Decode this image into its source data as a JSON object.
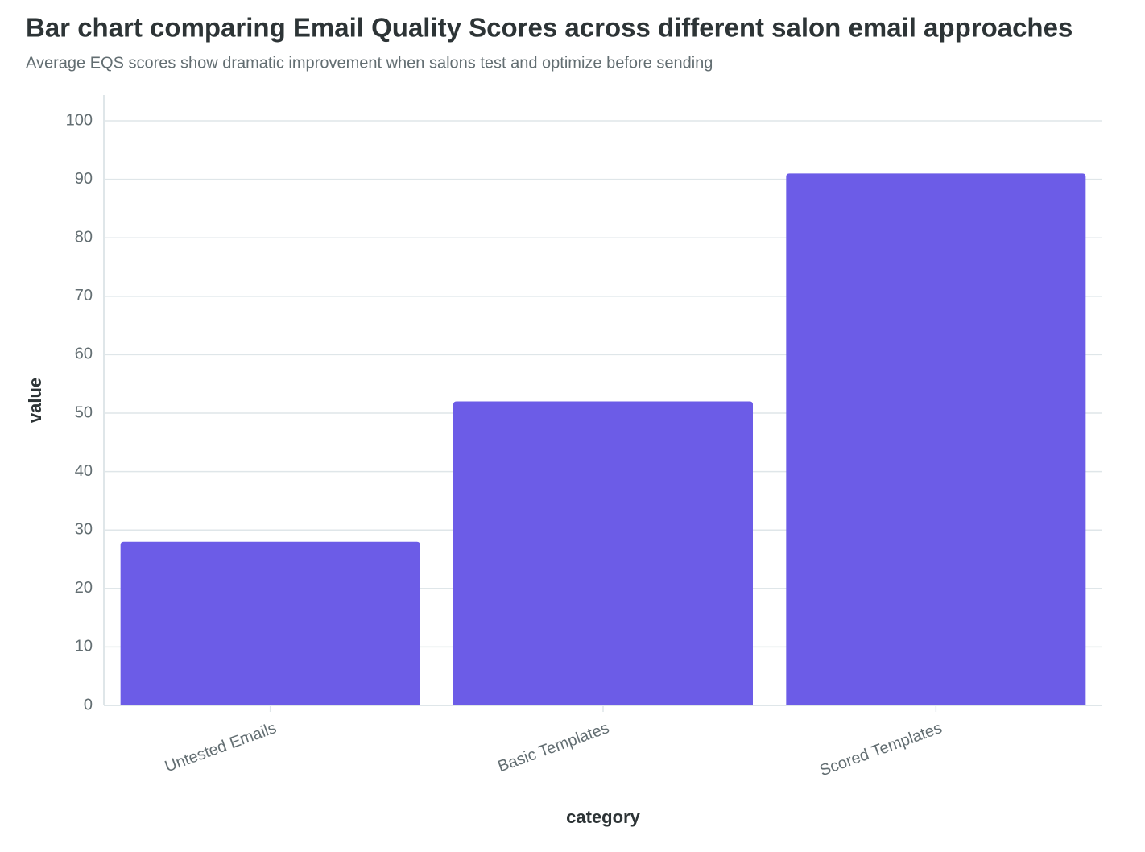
{
  "chart_data": {
    "type": "bar",
    "title": "Bar chart comparing Email Quality Scores across different salon email approaches",
    "subtitle": "Average EQS scores show dramatic improvement when salons test and optimize before sending",
    "x_label": "category",
    "y_label": "value",
    "categories": [
      "Untested Emails",
      "Basic Templates",
      "Scored Templates"
    ],
    "values": [
      28,
      52,
      91
    ],
    "color": "#6c5ce7",
    "ylim": [
      0,
      104
    ],
    "yticks": [
      0,
      10,
      20,
      30,
      40,
      50,
      60,
      70,
      80,
      90,
      100
    ],
    "grid": true
  }
}
